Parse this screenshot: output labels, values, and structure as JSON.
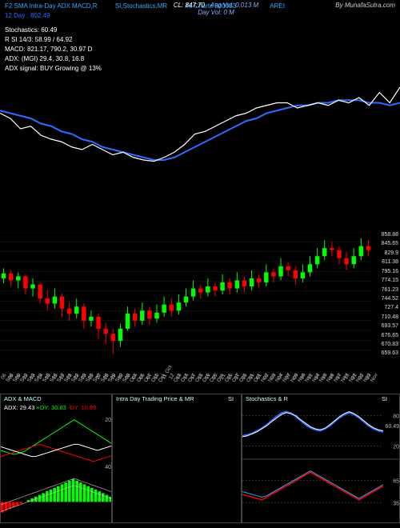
{
  "header": {
    "line1_left": "F2 SMA Intra-Day ADX MACD,R",
    "line1_mid": "SI,Stochastics,MR",
    "line1_charts": "All Charts 500003",
    "line1_sym": "AREI",
    "line1_watermark": "By MunafaSutra.com",
    "line2": "12 Day : 802.49",
    "cl_label": "CL:",
    "cl_value": "847.70",
    "avg_label": "Avg Vol:",
    "avg_value": "0.013 M",
    "day_label": "Day Vol:",
    "day_value": "0   M",
    "stoch": "Stochastics: 60.49",
    "rsi": "R        SI 14/3: 58.99 / 64.92",
    "macd": "MACD: 821.17, 790.2,  30.97 D",
    "adx": "ADX:                                 (MGI) 29.4,  30.8,  16.8",
    "adx_signal": "ADX signal:                                                 BUY Growing @ 13%"
  },
  "top_chart": {
    "white": [
      72,
      68,
      60,
      62,
      55,
      52,
      50,
      46,
      44,
      48,
      44,
      40,
      42,
      38,
      36,
      35,
      38,
      42,
      48,
      56,
      58,
      62,
      66,
      70,
      72,
      76,
      78,
      80,
      80,
      76,
      78,
      80,
      78,
      82,
      80,
      84,
      78,
      88,
      80,
      92
    ],
    "blue": [
      74,
      72,
      70,
      68,
      64,
      62,
      58,
      56,
      52,
      50,
      46,
      44,
      42,
      40,
      38,
      36,
      36,
      38,
      42,
      46,
      50,
      54,
      58,
      62,
      66,
      68,
      72,
      74,
      76,
      78,
      78,
      80,
      80,
      82,
      82,
      82,
      80,
      80,
      78,
      80
    ]
  },
  "price_labels": [
    "858.88",
    "845.65",
    "829.9",
    "811.38",
    "795.16",
    "774.15",
    "761.23",
    "744.52",
    "727.4",
    "710.48",
    "693.57",
    "676.65",
    "670.83",
    "659.63"
  ],
  "dates": [
    "06 Sep",
    "08 Sep",
    "09 Sep",
    "12 Sep",
    "13 Sep",
    "14 Sep",
    "15 Sep",
    "16 Sep",
    "17 Sep",
    "21 Sep",
    "22 Sep",
    "23 Sep",
    "26 Sep",
    "27 Sep",
    "28 Sep",
    "29 Sep",
    "30 Sep",
    "03 Oct",
    "04 Oct",
    "06 Oct",
    "07 Oct",
    "10 Oct",
    "11 Oct",
    "12 Oct",
    "13 Oct",
    "14 Oct",
    "17 Oct",
    "18 Oct",
    "19 Oct",
    "20 Oct",
    "21 Oct",
    "25 Oct",
    "27 Oct",
    "28 Oct",
    "31 Oct",
    "01 Nov",
    "02 Nov",
    "03 Nov",
    "04 Nov",
    "07 Nov",
    "09 Nov",
    "10 Nov",
    "11 Nov",
    "14 Nov",
    "15 Nov",
    "16 Nov",
    "17 Nov",
    "18 Nov",
    "21 Nov",
    "22 Nov",
    "23 Nov"
  ],
  "candles": [
    {
      "o": 90,
      "c": 95,
      "h": 100,
      "l": 85
    },
    {
      "o": 95,
      "c": 88,
      "h": 98,
      "l": 82
    },
    {
      "o": 88,
      "c": 92,
      "h": 96,
      "l": 80
    },
    {
      "o": 92,
      "c": 80,
      "h": 94,
      "l": 74
    },
    {
      "o": 80,
      "c": 84,
      "h": 90,
      "l": 72
    },
    {
      "o": 84,
      "c": 70,
      "h": 86,
      "l": 65
    },
    {
      "o": 70,
      "c": 65,
      "h": 78,
      "l": 58
    },
    {
      "o": 65,
      "c": 72,
      "h": 80,
      "l": 60
    },
    {
      "o": 72,
      "c": 60,
      "h": 75,
      "l": 52
    },
    {
      "o": 60,
      "c": 55,
      "h": 66,
      "l": 48
    },
    {
      "o": 55,
      "c": 62,
      "h": 70,
      "l": 50
    },
    {
      "o": 62,
      "c": 48,
      "h": 65,
      "l": 40
    },
    {
      "o": 48,
      "c": 52,
      "h": 58,
      "l": 42
    },
    {
      "o": 52,
      "c": 40,
      "h": 55,
      "l": 30
    },
    {
      "o": 40,
      "c": 35,
      "h": 46,
      "l": 25
    },
    {
      "o": 35,
      "c": 28,
      "h": 40,
      "l": 15
    },
    {
      "o": 28,
      "c": 40,
      "h": 45,
      "l": 22
    },
    {
      "o": 40,
      "c": 55,
      "h": 62,
      "l": 38
    },
    {
      "o": 55,
      "c": 48,
      "h": 60,
      "l": 42
    },
    {
      "o": 48,
      "c": 58,
      "h": 66,
      "l": 44
    },
    {
      "o": 58,
      "c": 50,
      "h": 62,
      "l": 44
    },
    {
      "o": 50,
      "c": 56,
      "h": 64,
      "l": 46
    },
    {
      "o": 56,
      "c": 64,
      "h": 72,
      "l": 52
    },
    {
      "o": 64,
      "c": 58,
      "h": 70,
      "l": 52
    },
    {
      "o": 58,
      "c": 66,
      "h": 74,
      "l": 54
    },
    {
      "o": 66,
      "c": 72,
      "h": 80,
      "l": 62
    },
    {
      "o": 72,
      "c": 80,
      "h": 88,
      "l": 68
    },
    {
      "o": 80,
      "c": 76,
      "h": 84,
      "l": 70
    },
    {
      "o": 76,
      "c": 82,
      "h": 90,
      "l": 72
    },
    {
      "o": 82,
      "c": 78,
      "h": 86,
      "l": 72
    },
    {
      "o": 78,
      "c": 86,
      "h": 94,
      "l": 74
    },
    {
      "o": 86,
      "c": 80,
      "h": 90,
      "l": 74
    },
    {
      "o": 80,
      "c": 88,
      "h": 96,
      "l": 76
    },
    {
      "o": 88,
      "c": 82,
      "h": 92,
      "l": 76
    },
    {
      "o": 82,
      "c": 90,
      "h": 98,
      "l": 78
    },
    {
      "o": 90,
      "c": 86,
      "h": 94,
      "l": 80
    },
    {
      "o": 86,
      "c": 96,
      "h": 104,
      "l": 82
    },
    {
      "o": 96,
      "c": 92,
      "h": 100,
      "l": 86
    },
    {
      "o": 92,
      "c": 102,
      "h": 110,
      "l": 88
    },
    {
      "o": 102,
      "c": 98,
      "h": 106,
      "l": 92
    },
    {
      "o": 98,
      "c": 90,
      "h": 102,
      "l": 84
    },
    {
      "o": 90,
      "c": 96,
      "h": 104,
      "l": 86
    },
    {
      "o": 96,
      "c": 104,
      "h": 112,
      "l": 92
    },
    {
      "o": 104,
      "c": 112,
      "h": 120,
      "l": 100
    },
    {
      "o": 112,
      "c": 120,
      "h": 128,
      "l": 108
    },
    {
      "o": 120,
      "c": 118,
      "h": 126,
      "l": 112
    },
    {
      "o": 118,
      "c": 110,
      "h": 122,
      "l": 104
    },
    {
      "o": 110,
      "c": 104,
      "h": 116,
      "l": 98
    },
    {
      "o": 104,
      "c": 112,
      "h": 120,
      "l": 100
    },
    {
      "o": 112,
      "c": 122,
      "h": 130,
      "l": 108
    },
    {
      "o": 122,
      "c": 118,
      "h": 128,
      "l": 112
    }
  ],
  "panel1": {
    "title": "ADX  & MACD",
    "sub": "ADX: 29.43 +DY: 30.83 -DY: 16.89",
    "dp": [
      25,
      24,
      23,
      22,
      22,
      23,
      24,
      26,
      28,
      30,
      32,
      34,
      36,
      38,
      40,
      42,
      44,
      46,
      48,
      50,
      48,
      46,
      44,
      42,
      40,
      38,
      36,
      34,
      32,
      30
    ],
    "dm": [
      20,
      21,
      22,
      23,
      24,
      25,
      26,
      27,
      28,
      29,
      30,
      29,
      28,
      27,
      26,
      25,
      24,
      23,
      22,
      21,
      20,
      19,
      18,
      17,
      16,
      17,
      18,
      19,
      20,
      21
    ],
    "adx": [
      28,
      27,
      26,
      25,
      24,
      23,
      22,
      21,
      20,
      20,
      21,
      22,
      23,
      24,
      25,
      26,
      27,
      28,
      29,
      30,
      30,
      29,
      28,
      27,
      26,
      25,
      26,
      27,
      28,
      29
    ],
    "hist": [
      -6,
      -5,
      -4,
      -3,
      -2,
      -1,
      0,
      1,
      2,
      3,
      4,
      5,
      6,
      7,
      8,
      9,
      10,
      11,
      12,
      13,
      12,
      11,
      10,
      9,
      8,
      7,
      6,
      5,
      4,
      3
    ],
    "y": [
      "40",
      "20"
    ]
  },
  "panel2": {
    "title_a": "Intra  Day Trading Price  & MR",
    "title_b": "SI"
  },
  "panel3": {
    "title_a": "Stochastics & R",
    "title_b": "SI",
    "stoch_a": [
      40,
      42,
      45,
      50,
      55,
      62,
      70,
      78,
      85,
      88,
      85,
      78,
      70,
      62,
      56,
      52,
      50,
      54,
      60,
      68,
      76,
      82,
      86,
      82,
      76,
      68,
      60,
      54,
      50,
      48
    ],
    "stoch_b": [
      38,
      40,
      44,
      48,
      54,
      60,
      68,
      75,
      82,
      86,
      84,
      80,
      72,
      65,
      58,
      54,
      52,
      55,
      62,
      70,
      78,
      84,
      88,
      84,
      78,
      70,
      62,
      56,
      52,
      50
    ],
    "marks": [
      "80",
      "60.49",
      "20"
    ],
    "rsi_a": [
      48,
      47,
      46,
      45,
      44,
      46,
      48,
      50,
      52,
      54,
      56,
      58,
      60,
      62,
      64,
      62,
      60,
      58,
      56,
      54,
      52,
      50,
      48,
      46,
      44,
      46,
      48,
      50,
      52,
      54
    ],
    "rsi_b": [
      50,
      49,
      48,
      47,
      46,
      47,
      49,
      51,
      53,
      55,
      57,
      59,
      61,
      63,
      65,
      63,
      61,
      59,
      57,
      55,
      53,
      51,
      49,
      47,
      45,
      47,
      49,
      51,
      53,
      55
    ],
    "marks2": [
      "65",
      "35"
    ]
  },
  "colors": {
    "blue": "#2d6cff",
    "white": "#ffffff",
    "green": "#00ff00",
    "red": "#ff0000",
    "grid": "#333333"
  }
}
